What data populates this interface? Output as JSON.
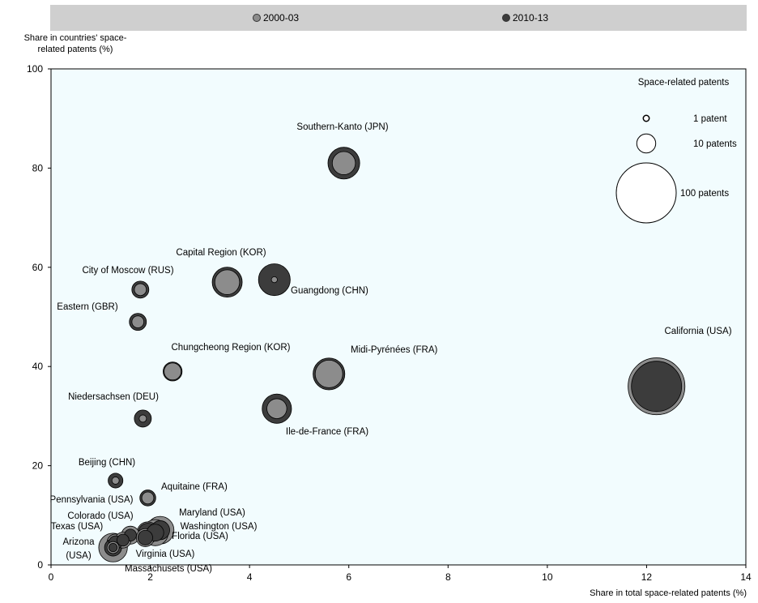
{
  "legend": {
    "items": [
      {
        "label": "2000-03",
        "color": "#8c8c8c"
      },
      {
        "label": "2010-13",
        "color": "#3c3c3c"
      }
    ]
  },
  "axes": {
    "ylabel": "Share in countries' space-related patents (%)",
    "xlabel": "Share in total space-related patents (%)"
  },
  "size_legend": {
    "title": "Space-related patents",
    "entries": [
      {
        "label": "1 patent",
        "patents": 1
      },
      {
        "label": "10 patents",
        "patents": 10
      },
      {
        "label": "100 patents",
        "patents": 100
      }
    ]
  },
  "chart_data": {
    "type": "scatter",
    "title": "",
    "xlabel": "Share in total space-related patents (%)",
    "ylabel": "Share in countries' space-related patents (%)",
    "xlim": [
      0,
      14
    ],
    "ylim": [
      0,
      100
    ],
    "xticks": [
      0,
      2,
      4,
      6,
      8,
      10,
      12,
      14
    ],
    "yticks": [
      0,
      20,
      40,
      60,
      80,
      100
    ],
    "grid": false,
    "legend_position": "top",
    "bubble_size": "number of space-related patents",
    "series": [
      {
        "name": "2000-03",
        "color": "#8c8c8c"
      },
      {
        "name": "2010-13",
        "color": "#3c3c3c"
      }
    ],
    "points": [
      {
        "label": "Southern-Kanto (JPN)",
        "x": 5.9,
        "y": 81,
        "size_2000": 15,
        "size_2010": 28
      },
      {
        "label": "Capital Region (KOR)",
        "x": 3.55,
        "y": 57,
        "size_2000": 17,
        "size_2010": 25
      },
      {
        "label": "Guangdong (CHN)",
        "x": 4.5,
        "y": 57.5,
        "size_2000": 1,
        "size_2010": 28
      },
      {
        "label": "City of Moscow (RUS)",
        "x": 1.8,
        "y": 55.5,
        "size_2000": 4,
        "size_2010": 8
      },
      {
        "label": "Eastern (GBR)",
        "x": 1.75,
        "y": 49,
        "size_2000": 4,
        "size_2010": 8
      },
      {
        "label": "California (USA)",
        "x": 12.2,
        "y": 36,
        "size_2000": 90,
        "size_2010": 70
      },
      {
        "label": "Chungcheong Region (KOR)",
        "x": 2.45,
        "y": 39,
        "size_2000": 8,
        "size_2010": 10
      },
      {
        "label": "Midi-Pyrénées (FRA)",
        "x": 5.6,
        "y": 38.5,
        "size_2000": 21,
        "size_2010": 28
      },
      {
        "label": "Ile-de-France (FRA)",
        "x": 4.55,
        "y": 31.5,
        "size_2000": 11,
        "size_2010": 24
      },
      {
        "label": "Niedersachsen (DEU)",
        "x": 1.85,
        "y": 29.5,
        "size_2000": 1.5,
        "size_2010": 8
      },
      {
        "label": "Beijing (CHN)",
        "x": 1.3,
        "y": 17,
        "size_2000": 1.5,
        "size_2010": 6
      },
      {
        "label": "Aquitaine (FRA)",
        "x": 1.95,
        "y": 13.5,
        "size_2000": 4,
        "size_2010": 7
      },
      {
        "label": "Pennsylvania (USA)",
        "x": 1.6,
        "y": 6,
        "size_2000": 9,
        "size_2010": 4
      },
      {
        "label": "Colorado (USA)",
        "x": 1.45,
        "y": 5,
        "size_2000": 7,
        "size_2010": 4
      },
      {
        "label": "Texas (USA)",
        "x": 1.3,
        "y": 4.5,
        "size_2000": 8,
        "size_2010": 5
      },
      {
        "label": "Maryland (USA)",
        "x": 2.2,
        "y": 7,
        "size_2000": 21,
        "size_2010": 10
      },
      {
        "label": "Washington (USA)",
        "x": 2.1,
        "y": 6.5,
        "size_2000": 19,
        "size_2010": 8
      },
      {
        "label": "Florida (USA)",
        "x": 1.95,
        "y": 6.5,
        "size_2000": 13,
        "size_2010": 10
      },
      {
        "label": "Virginia (USA)",
        "x": 1.9,
        "y": 5.5,
        "size_2000": 9,
        "size_2010": 6
      },
      {
        "label": "Arizona (USA)",
        "x": 1.25,
        "y": 3.5,
        "size_2000": 23,
        "size_2010": 8
      },
      {
        "label": "Massachusetts (USA)",
        "x": 1.25,
        "y": 3.5,
        "size_2000": 4,
        "size_2010": 2
      }
    ]
  }
}
